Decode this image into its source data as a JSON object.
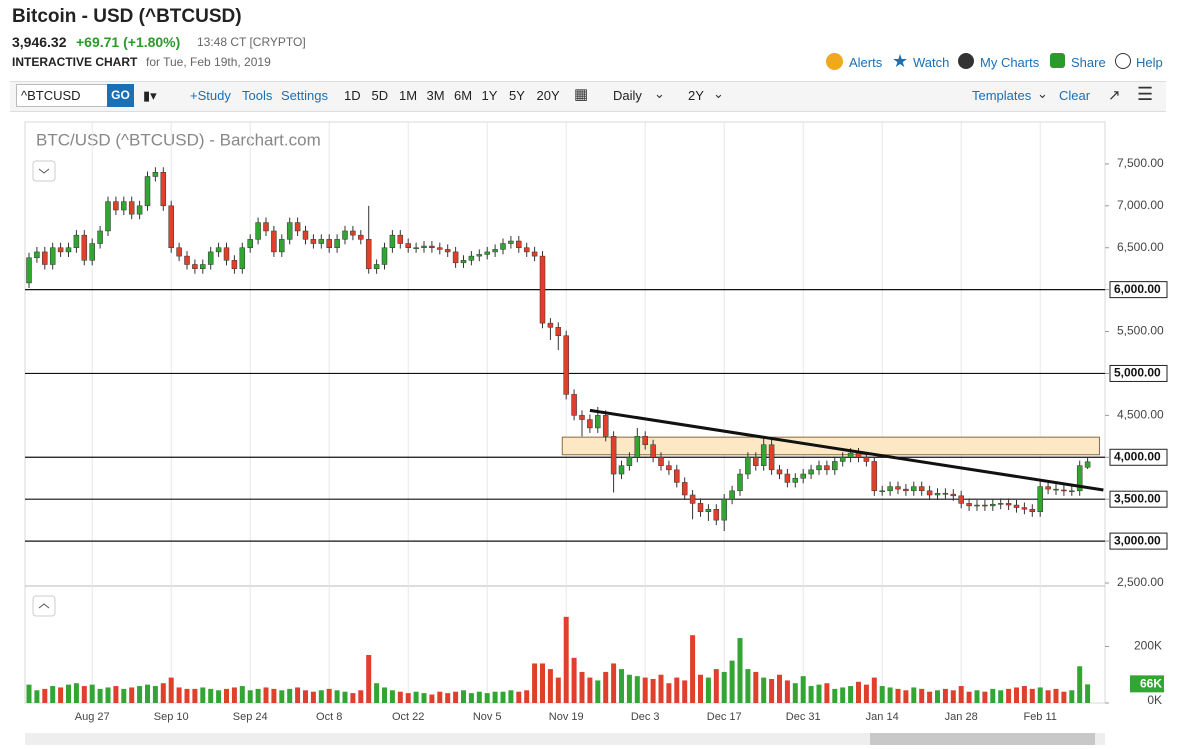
{
  "header": {
    "title": "Bitcoin - USD (^BTCUSD)",
    "price": "3,946.32",
    "change": "+69.71 (+1.80%)",
    "time": "13:48 CT [CRYPTO]",
    "chart_label": "INTERACTIVE CHART",
    "date_text": "for Tue, Feb 19th, 2019",
    "links": [
      "Alerts",
      "Watch",
      "My Charts",
      "Share",
      "Help"
    ]
  },
  "toolbar": {
    "symbol": "^BTCUSD",
    "go": "GO",
    "study": "+Study",
    "tools": "Tools",
    "settings": "Settings",
    "ranges": [
      "1D",
      "5D",
      "1M",
      "3M",
      "6M",
      "1Y",
      "5Y",
      "20Y"
    ],
    "interval": "Daily",
    "period": "2Y",
    "templates": "Templates",
    "clear": "Clear"
  },
  "chart_data": {
    "type": "candlestick",
    "title": "BTC/USD (^BTCUSD) - Barchart.com",
    "up_color": "#33a532",
    "down_color": "#e0402b",
    "categories": [
      null,
      null,
      null,
      null,
      null,
      null,
      null,
      null,
      "Aug 27",
      null,
      null,
      null,
      null,
      null,
      null,
      null,
      null,
      null,
      "Sep 10",
      null,
      null,
      null,
      null,
      null,
      null,
      null,
      null,
      null,
      "Sep 24",
      null,
      null,
      null,
      null,
      null,
      null,
      null,
      null,
      null,
      "Oct 8",
      null,
      null,
      null,
      null,
      null,
      null,
      null,
      null,
      null,
      "Oct 22",
      null,
      null,
      null,
      null,
      null,
      null,
      null,
      null,
      null,
      "Nov 5",
      null,
      null,
      null,
      null,
      null,
      null,
      null,
      null,
      null,
      "Nov 19",
      null,
      null,
      null,
      null,
      null,
      null,
      null,
      null,
      null,
      "Dec 3",
      null,
      null,
      null,
      null,
      null,
      null,
      null,
      null,
      null,
      "Dec 17",
      null,
      null,
      null,
      null,
      null,
      null,
      null,
      null,
      null,
      "Dec 31",
      null,
      null,
      null,
      null,
      null,
      null,
      null,
      null,
      null,
      "Jan 14",
      null,
      null,
      null,
      null,
      null,
      null,
      null,
      null,
      null,
      "Jan 28",
      null,
      null,
      null,
      null,
      null,
      null,
      null,
      null,
      null,
      "Feb 11",
      null,
      null,
      null,
      null,
      null,
      null
    ],
    "open": [
      6080,
      6380,
      6450,
      6300,
      6500,
      6450,
      6500,
      6650,
      6350,
      6550,
      6700,
      7050,
      6950,
      7050,
      6900,
      7000,
      7350,
      7400,
      7000,
      6500,
      6400,
      6300,
      6250,
      6300,
      6450,
      6500,
      6350,
      6250,
      6500,
      6600,
      6800,
      6700,
      6450,
      6600,
      6800,
      6700,
      6600,
      6550,
      6600,
      6500,
      6600,
      6700,
      6650,
      6600,
      6250,
      6300,
      6500,
      6650,
      6550,
      6500,
      6500,
      6520,
      6500,
      6480,
      6450,
      6320,
      6350,
      6400,
      6420,
      6450,
      6480,
      6550,
      6580,
      6500,
      6450,
      6400,
      5600,
      5550,
      5450,
      4750,
      4500,
      4450,
      4350,
      4500,
      4250,
      3800,
      3900,
      4000,
      4250,
      4150,
      4000,
      3900,
      3850,
      3700,
      3550,
      3450,
      3350,
      3380,
      3250,
      3500,
      3600,
      3800,
      4000,
      3900,
      4150,
      3850,
      3800,
      3700,
      3750,
      3800,
      3850,
      3900,
      3850,
      3950,
      4000,
      4050,
      4000,
      3950,
      3600,
      3600,
      3650,
      3620,
      3600,
      3650,
      3600,
      3550,
      3570,
      3560,
      3540,
      3450,
      3420,
      3430,
      3420,
      3440,
      3450,
      3430,
      3400,
      3380,
      3350,
      3650,
      3620,
      3610,
      3600,
      3600,
      3880
    ],
    "high": [
      6440,
      6510,
      6510,
      6560,
      6560,
      6560,
      6710,
      6710,
      6610,
      6760,
      7110,
      7110,
      7110,
      7110,
      7060,
      7410,
      7460,
      7460,
      7060,
      6560,
      6460,
      6360,
      6360,
      6510,
      6560,
      6560,
      6410,
      6560,
      6660,
      6860,
      6860,
      6760,
      6660,
      6860,
      6860,
      6760,
      6660,
      6660,
      6660,
      6660,
      6760,
      6760,
      6710,
      7000,
      6360,
      6560,
      6710,
      6710,
      6610,
      6560,
      6580,
      6580,
      6560,
      6540,
      6510,
      6410,
      6460,
      6480,
      6510,
      6540,
      6610,
      6640,
      6640,
      6560,
      6510,
      6460,
      5660,
      5610,
      5510,
      4810,
      4560,
      4510,
      4600,
      4560,
      4310,
      3960,
      4060,
      4350,
      4310,
      4210,
      4060,
      3960,
      3910,
      3760,
      3610,
      3510,
      3440,
      3440,
      3560,
      3660,
      3860,
      4060,
      4060,
      4250,
      4210,
      3910,
      3860,
      3810,
      3860,
      3910,
      3960,
      3960,
      4010,
      4060,
      4110,
      4110,
      4060,
      4010,
      3660,
      3710,
      3710,
      3680,
      3710,
      3710,
      3660,
      3630,
      3630,
      3620,
      3600,
      3510,
      3490,
      3490,
      3500,
      3510,
      3510,
      3490,
      3460,
      3440,
      3710,
      3710,
      3680,
      3670,
      3660,
      3960,
      4000
    ],
    "low": [
      6020,
      6320,
      6240,
      6240,
      6390,
      6390,
      6440,
      6290,
      6290,
      6490,
      6640,
      6890,
      6890,
      6840,
      6840,
      6940,
      7290,
      6940,
      6440,
      6340,
      6240,
      6190,
      6190,
      6240,
      6390,
      6290,
      6190,
      6190,
      6440,
      6540,
      6640,
      6390,
      6390,
      6540,
      6640,
      6540,
      6490,
      6490,
      6440,
      6440,
      6540,
      6590,
      6540,
      6190,
      6190,
      6240,
      6440,
      6490,
      6440,
      6440,
      6440,
      6440,
      6420,
      6390,
      6260,
      6260,
      6290,
      6340,
      6360,
      6390,
      6420,
      6490,
      6440,
      6390,
      6340,
      5540,
      5400,
      5280,
      4690,
      4440,
      4250,
      4290,
      4290,
      4190,
      3580,
      3740,
      3840,
      3940,
      4090,
      3940,
      3840,
      3790,
      3640,
      3490,
      3260,
      3290,
      3240,
      3190,
      3120,
      3440,
      3540,
      3740,
      3840,
      3840,
      3790,
      3740,
      3640,
      3640,
      3690,
      3740,
      3790,
      3790,
      3790,
      3890,
      3940,
      3940,
      3890,
      3540,
      3540,
      3540,
      3560,
      3540,
      3540,
      3540,
      3490,
      3490,
      3500,
      3480,
      3390,
      3360,
      3360,
      3360,
      3360,
      3380,
      3370,
      3340,
      3320,
      3290,
      3290,
      3560,
      3550,
      3540,
      3540,
      3540,
      3860
    ],
    "close": [
      6380,
      6450,
      6300,
      6500,
      6450,
      6500,
      6650,
      6350,
      6550,
      6700,
      7050,
      6950,
      7050,
      6900,
      7000,
      7350,
      7400,
      7000,
      6500,
      6400,
      6300,
      6250,
      6300,
      6450,
      6500,
      6350,
      6250,
      6500,
      6600,
      6800,
      6700,
      6450,
      6600,
      6800,
      6700,
      6600,
      6550,
      6600,
      6500,
      6600,
      6700,
      6650,
      6600,
      6250,
      6300,
      6500,
      6650,
      6550,
      6500,
      6500,
      6520,
      6500,
      6480,
      6450,
      6320,
      6350,
      6400,
      6420,
      6450,
      6480,
      6550,
      6580,
      6500,
      6450,
      6400,
      5600,
      5550,
      5450,
      4750,
      4500,
      4450,
      4350,
      4500,
      4250,
      3800,
      3900,
      4000,
      4250,
      4150,
      4000,
      3900,
      3850,
      3700,
      3550,
      3450,
      3350,
      3380,
      3250,
      3500,
      3600,
      3800,
      4000,
      3900,
      4150,
      3850,
      3800,
      3700,
      3750,
      3800,
      3850,
      3900,
      3850,
      3950,
      4000,
      4050,
      4000,
      3950,
      3600,
      3600,
      3650,
      3620,
      3600,
      3650,
      3600,
      3550,
      3570,
      3560,
      3540,
      3450,
      3420,
      3430,
      3420,
      3440,
      3450,
      3430,
      3400,
      3380,
      3350,
      3650,
      3620,
      3610,
      3600,
      3600,
      3900,
      3946.32
    ],
    "ylim": [
      2500,
      8000
    ],
    "yticks": [
      {
        "value": 2500,
        "label": "2,500.00"
      },
      {
        "value": 3000,
        "label": "3,000.00"
      },
      {
        "value": 3500,
        "label": "3,500.00"
      },
      {
        "value": 4000,
        "label": "4,000.00"
      },
      {
        "value": 4500,
        "label": "4,500.00"
      },
      {
        "value": 5000,
        "label": "5,000.00"
      },
      {
        "value": 5500,
        "label": "5,500.00"
      },
      {
        "value": 6000,
        "label": "6,000.00"
      },
      {
        "value": 6500,
        "label": "6,500.00"
      },
      {
        "value": 7000,
        "label": "7,000.00"
      },
      {
        "value": 7500,
        "label": "7,500.00"
      }
    ],
    "hlines": [
      {
        "value": 6000,
        "label": "6,000.00"
      },
      {
        "value": 5000,
        "label": "5,000.00"
      },
      {
        "value": 4000,
        "label": "4,000.00"
      },
      {
        "value": 3500,
        "label": "3,500.00"
      },
      {
        "value": 3000,
        "label": "3,000.00"
      }
    ],
    "zone": {
      "x": [
        67.5,
        135.5
      ],
      "y": [
        4030,
        4240
      ]
    },
    "trendline": {
      "x": [
        71,
        136
      ],
      "y": [
        4560,
        3610
      ]
    },
    "grid": true,
    "volume": {
      "values": [
        65000,
        45000,
        50000,
        60000,
        55000,
        65000,
        70000,
        60000,
        65000,
        50000,
        55000,
        60000,
        50000,
        55000,
        60000,
        65000,
        60000,
        70000,
        90000,
        55000,
        50000,
        50000,
        55000,
        50000,
        45000,
        50000,
        55000,
        60000,
        45000,
        50000,
        55000,
        50000,
        45000,
        50000,
        55000,
        45000,
        40000,
        45000,
        50000,
        45000,
        40000,
        35000,
        45000,
        170000,
        70000,
        55000,
        45000,
        40000,
        35000,
        40000,
        35000,
        30000,
        40000,
        35000,
        40000,
        45000,
        35000,
        40000,
        35000,
        40000,
        40000,
        45000,
        40000,
        45000,
        140000,
        140000,
        120000,
        90000,
        305000,
        160000,
        110000,
        90000,
        80000,
        110000,
        140000,
        120000,
        100000,
        95000,
        90000,
        85000,
        100000,
        70000,
        90000,
        80000,
        240000,
        100000,
        90000,
        120000,
        110000,
        150000,
        230000,
        120000,
        110000,
        90000,
        85000,
        100000,
        80000,
        70000,
        95000,
        60000,
        65000,
        70000,
        50000,
        55000,
        60000,
        75000,
        65000,
        90000,
        60000,
        55000,
        50000,
        45000,
        55000,
        50000,
        40000,
        45000,
        50000,
        45000,
        60000,
        40000,
        45000,
        40000,
        50000,
        45000,
        50000,
        55000,
        60000,
        50000,
        55000,
        45000,
        50000,
        40000,
        45000,
        130000,
        66000
      ],
      "last_label": "66K",
      "ylim": [
        0,
        400000
      ],
      "yticks": [
        {
          "value": 0,
          "label": "0K"
        },
        {
          "value": 200000,
          "label": "200K"
        }
      ]
    }
  }
}
